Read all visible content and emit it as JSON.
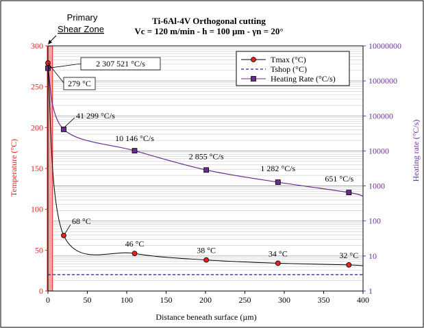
{
  "chart_data": {
    "type": "line",
    "title": "Ti-6Al-4V Orthogonal cutting",
    "subtitle": "Vc = 120 m/min - h = 100 µm - γn = 20°",
    "xlabel": "Distance beneath surface (µm)",
    "ylabel": "Temperature (°C)",
    "y2label": "Heating rate (°C/s)",
    "xlim": [
      0,
      400
    ],
    "ylim": [
      0,
      300
    ],
    "y2lim": [
      1,
      10000000
    ],
    "y2scale": "log",
    "x_ticks": [
      "0",
      "50",
      "100",
      "150",
      "200",
      "250",
      "300",
      "350",
      "400"
    ],
    "y_ticks": [
      "0",
      "50",
      "100",
      "150",
      "200",
      "250",
      "300"
    ],
    "y2_ticks": [
      "1",
      "10",
      "100",
      "1000",
      "10000",
      "100000",
      "1000000",
      "10000000"
    ],
    "grid": true,
    "legend_position": "top-right",
    "zone_label_1": "Primary",
    "zone_label_2": "Shear Zone",
    "zone_x": [
      0,
      5
    ],
    "colors": {
      "tmax": "#e8201e",
      "tshop": "#1f2a8c",
      "heating": "#6a2c91",
      "zone": "#f4a3a3",
      "axis_left": "#e8201e",
      "axis_right": "#7030a0"
    },
    "series": [
      {
        "name": "Tmax (°C)",
        "axis": "left",
        "marker": "circle",
        "x": [
          0,
          20,
          110,
          201,
          292,
          382
        ],
        "y": [
          279,
          68,
          46,
          38,
          34,
          32
        ],
        "labels": [
          "279 °C",
          "68 °C",
          "46 °C",
          "38 °C",
          "34 °C",
          "32 °C"
        ]
      },
      {
        "name": "Tshop (°C)",
        "axis": "left",
        "style": "dashed",
        "x": [
          0,
          400
        ],
        "y": [
          20,
          20
        ]
      },
      {
        "name": "Heating Rate (°C/s)",
        "axis": "right",
        "marker": "square",
        "x": [
          0,
          20,
          110,
          201,
          292,
          382
        ],
        "y": [
          2307521,
          41299,
          10146,
          2855,
          1282,
          651
        ],
        "labels": [
          "2 307 521 °C/s",
          "41 299 °C/s",
          "10 146 °C/s",
          "2 855 °C/s",
          "1 282 °C/s",
          "651 °C/s"
        ]
      }
    ]
  }
}
